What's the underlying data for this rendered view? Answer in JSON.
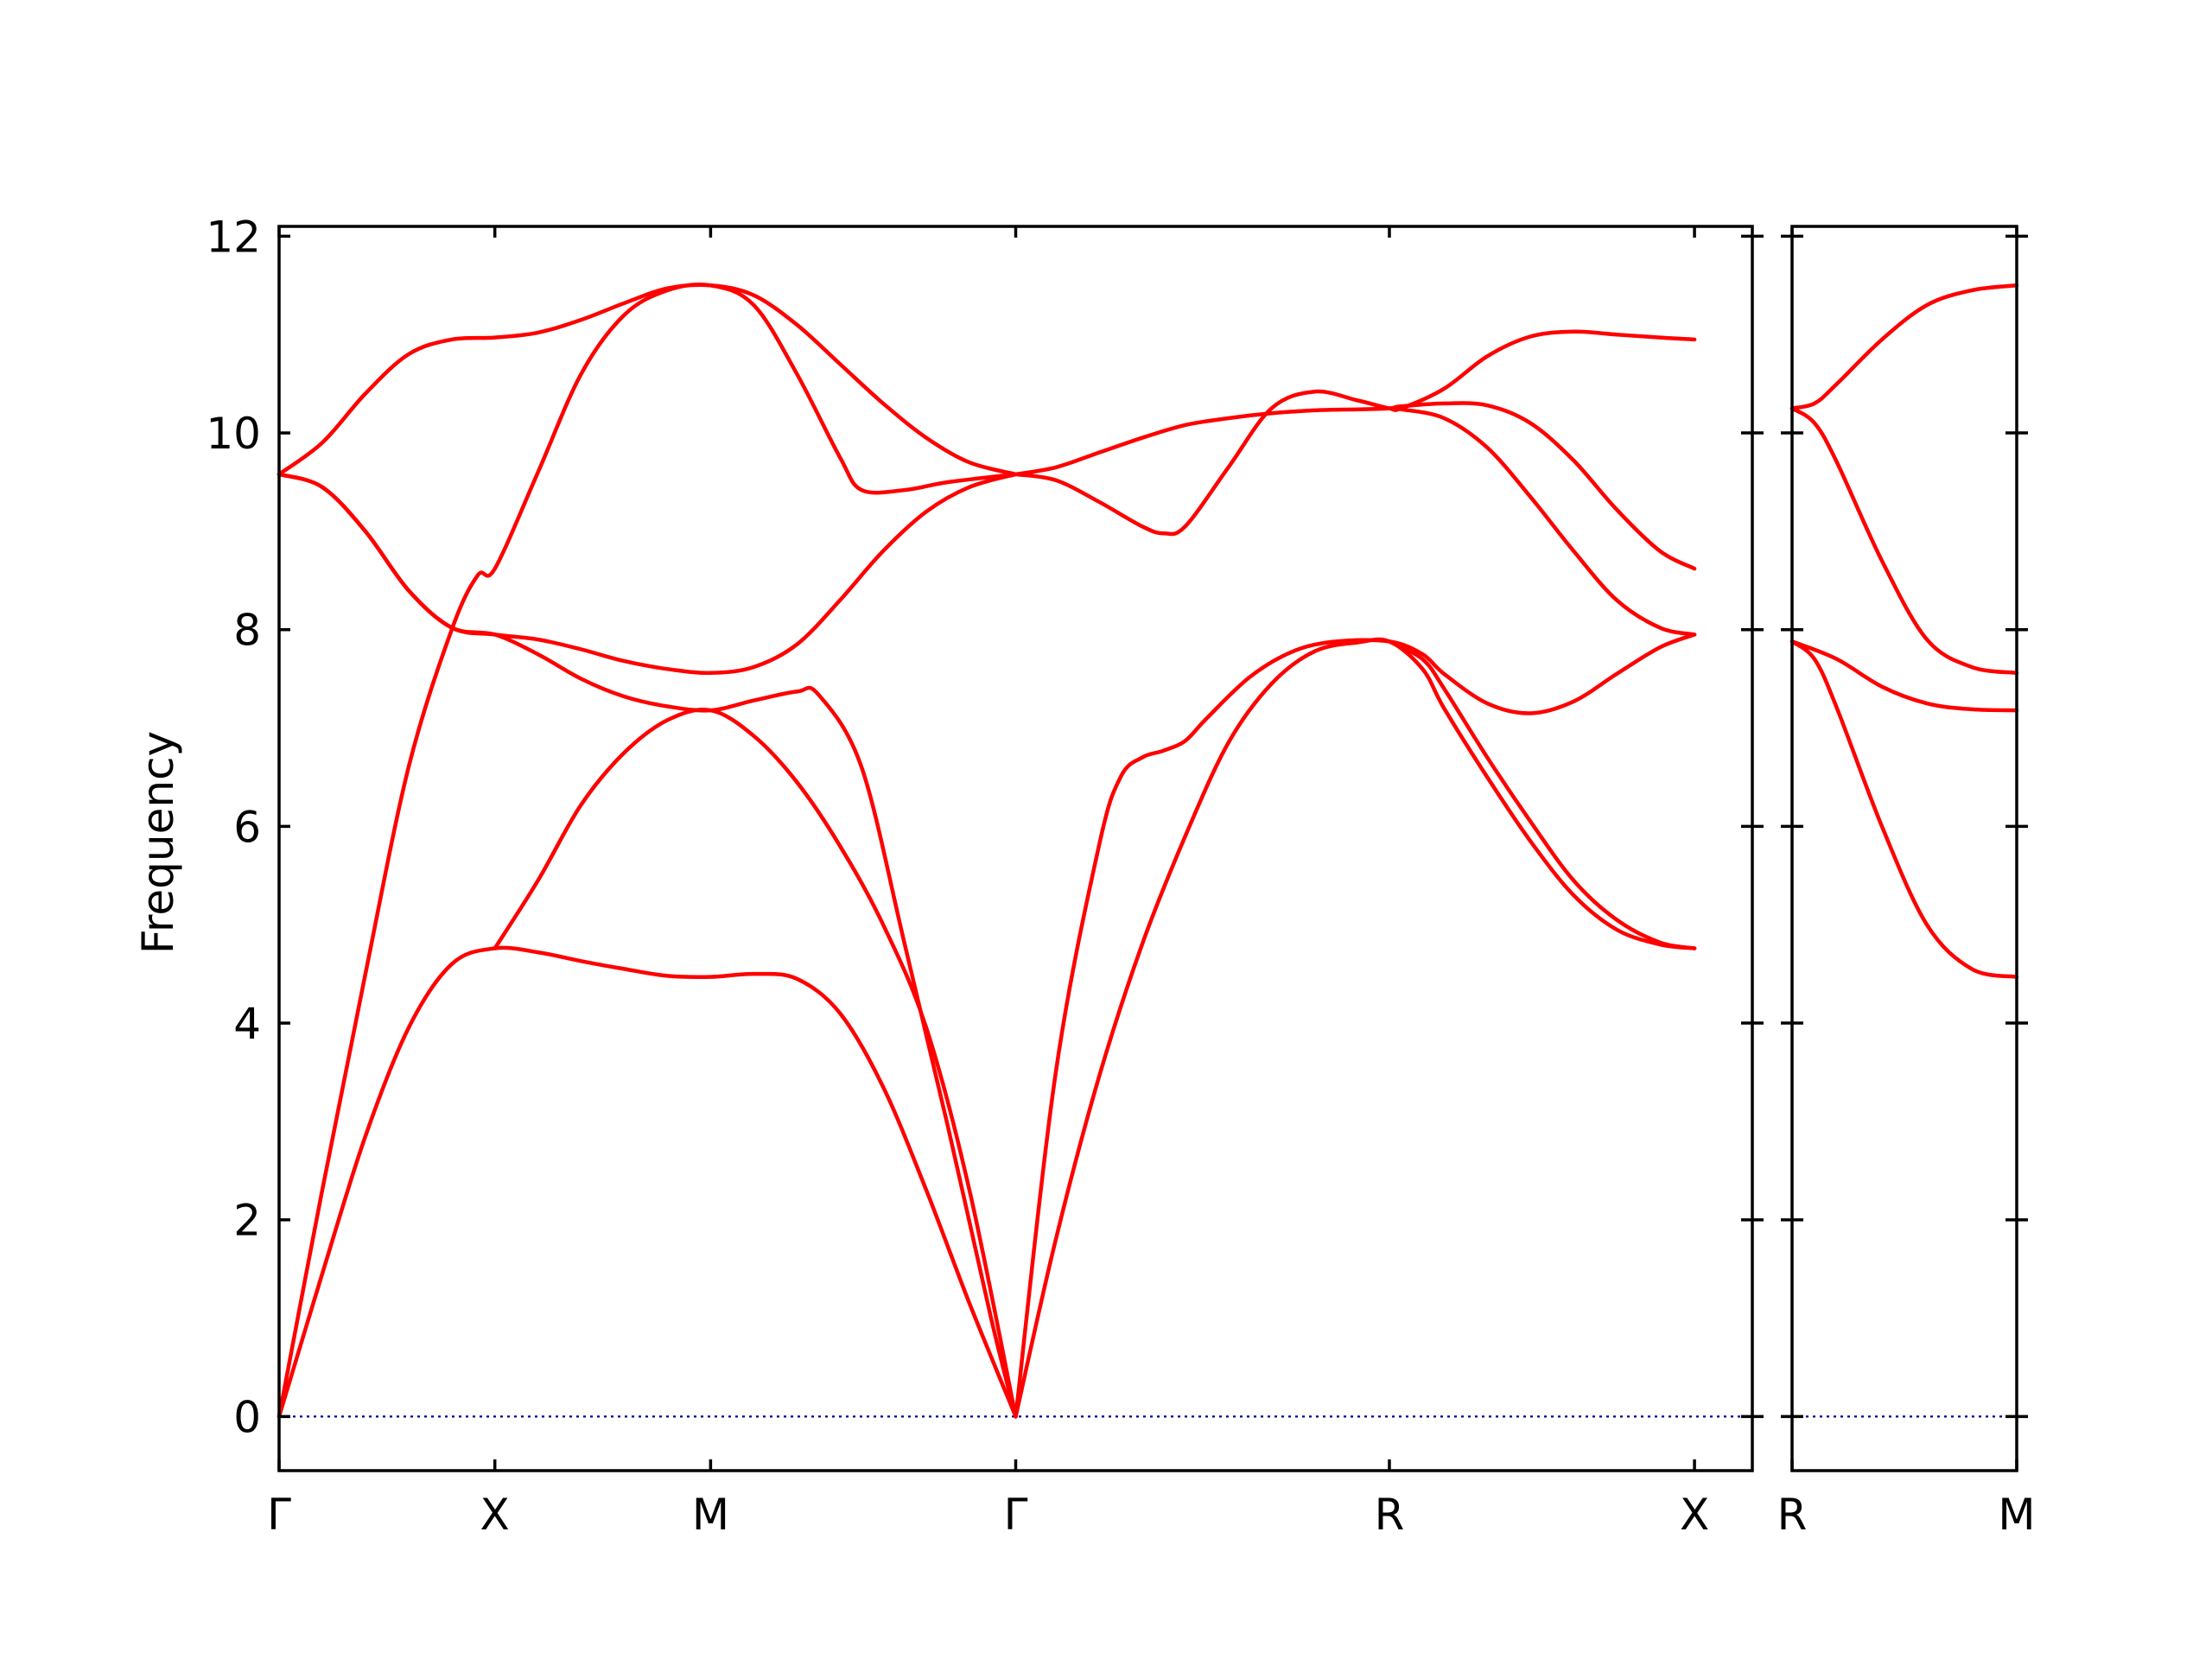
{
  "chart_data": {
    "type": "line",
    "title": "",
    "ylabel": "Frequency",
    "ylim": [
      -0.55,
      12.1
    ],
    "yticks": [
      0,
      2,
      4,
      6,
      8,
      10,
      12
    ],
    "grid": false,
    "colors": {
      "bands": "#ff0000",
      "zero_line": "#00008b"
    },
    "panels": [
      {
        "xlim": [
          0,
          3.4142
        ],
        "xticks": [
          {
            "pos": 0,
            "label": "Γ"
          },
          {
            "pos": 0.5,
            "label": "X"
          },
          {
            "pos": 1.0,
            "label": "M"
          },
          {
            "pos": 1.7071,
            "label": "Γ"
          },
          {
            "pos": 2.5731,
            "label": "R"
          },
          {
            "pos": 3.2802,
            "label": "X"
          }
        ],
        "series": [
          {
            "values": [
              [
                0,
                0
              ],
              [
                0.1,
                2.3
              ],
              [
                0.2,
                4.5
              ],
              [
                0.3,
                6.6
              ],
              [
                0.4,
                8.0
              ],
              [
                0.46,
                8.55
              ],
              [
                0.5,
                8.62
              ],
              [
                0.6,
                9.6
              ],
              [
                0.7,
                10.6
              ],
              [
                0.8,
                11.2
              ],
              [
                0.9,
                11.45
              ],
              [
                1.0,
                11.5
              ],
              [
                1.1,
                11.3
              ],
              [
                1.2,
                10.6
              ],
              [
                1.3,
                9.75
              ],
              [
                1.35,
                9.42
              ],
              [
                1.45,
                9.42
              ],
              [
                1.55,
                9.5
              ],
              [
                1.7071,
                9.58
              ]
            ]
          },
          {
            "values": [
              [
                0,
                9.58
              ],
              [
                0.1,
                9.9
              ],
              [
                0.2,
                10.4
              ],
              [
                0.3,
                10.8
              ],
              [
                0.4,
                10.95
              ],
              [
                0.5,
                10.97
              ],
              [
                0.6,
                11.02
              ],
              [
                0.7,
                11.15
              ],
              [
                0.8,
                11.32
              ],
              [
                0.9,
                11.47
              ],
              [
                1.0,
                11.5
              ],
              [
                1.1,
                11.4
              ],
              [
                1.2,
                11.1
              ],
              [
                1.3,
                10.7
              ],
              [
                1.4,
                10.3
              ],
              [
                1.5,
                9.95
              ],
              [
                1.6,
                9.7
              ],
              [
                1.7071,
                9.58
              ]
            ]
          },
          {
            "values": [
              [
                0,
                9.58
              ],
              [
                0.1,
                9.45
              ],
              [
                0.2,
                9.0
              ],
              [
                0.3,
                8.4
              ],
              [
                0.4,
                8.02
              ],
              [
                0.5,
                7.95
              ],
              [
                0.6,
                7.9
              ],
              [
                0.7,
                7.8
              ],
              [
                0.8,
                7.68
              ],
              [
                0.9,
                7.6
              ],
              [
                1.0,
                7.56
              ],
              [
                1.1,
                7.62
              ],
              [
                1.2,
                7.85
              ],
              [
                1.3,
                8.3
              ],
              [
                1.4,
                8.8
              ],
              [
                1.5,
                9.2
              ],
              [
                1.6,
                9.45
              ],
              [
                1.7071,
                9.58
              ]
            ]
          },
          {
            "values": [
              [
                0,
                0
              ],
              [
                0.1,
                1.45
              ],
              [
                0.2,
                2.85
              ],
              [
                0.3,
                3.95
              ],
              [
                0.4,
                4.6
              ],
              [
                0.5,
                4.76
              ],
              [
                0.6,
                4.72
              ],
              [
                0.7,
                4.63
              ],
              [
                0.8,
                4.55
              ],
              [
                0.9,
                4.48
              ],
              [
                1.0,
                4.47
              ],
              [
                1.1,
                4.5
              ],
              [
                1.2,
                4.45
              ],
              [
                1.3,
                4.1
              ],
              [
                1.4,
                3.35
              ],
              [
                1.5,
                2.3
              ],
              [
                1.6,
                1.15
              ],
              [
                1.7071,
                0
              ]
            ]
          },
          {
            "values": [
              [
                0,
                9.58
              ],
              [
                0.1,
                9.45
              ],
              [
                0.2,
                9.0
              ],
              [
                0.3,
                8.4
              ],
              [
                0.4,
                8.02
              ],
              [
                0.5,
                7.95
              ],
              [
                0.6,
                7.75
              ],
              [
                0.7,
                7.5
              ],
              [
                0.8,
                7.32
              ],
              [
                0.9,
                7.22
              ],
              [
                1.0,
                7.18
              ],
              [
                1.1,
                7.28
              ],
              [
                1.2,
                7.37
              ],
              [
                1.25,
                7.34
              ],
              [
                1.35,
                6.6
              ],
              [
                1.45,
                4.8
              ],
              [
                1.55,
                2.95
              ],
              [
                1.65,
                1.0
              ],
              [
                1.7071,
                0
              ]
            ]
          },
          {
            "values": [
              [
                0.5,
                4.76
              ],
              [
                0.6,
                5.45
              ],
              [
                0.7,
                6.22
              ],
              [
                0.8,
                6.75
              ],
              [
                0.9,
                7.08
              ],
              [
                1.0,
                7.18
              ],
              [
                1.1,
                6.92
              ],
              [
                1.2,
                6.45
              ],
              [
                1.3,
                5.8
              ],
              [
                1.4,
                5.0
              ],
              [
                1.5,
                3.95
              ],
              [
                1.6,
                2.3
              ],
              [
                1.7071,
                0
              ]
            ]
          },
          {
            "values": [
              [
                1.7071,
                9.58
              ],
              [
                1.8,
                9.52
              ],
              [
                1.9,
                9.3
              ],
              [
                2.0,
                9.05
              ],
              [
                2.05,
                8.98
              ],
              [
                2.1,
                9.05
              ],
              [
                2.2,
                9.65
              ],
              [
                2.3,
                10.25
              ],
              [
                2.4,
                10.42
              ],
              [
                2.5,
                10.33
              ],
              [
                2.5731,
                10.25
              ],
              [
                2.6,
                10.25
              ],
              [
                2.7,
                10.45
              ],
              [
                2.8,
                10.78
              ],
              [
                2.9,
                10.98
              ],
              [
                3.0,
                11.03
              ],
              [
                3.1,
                11.0
              ],
              [
                3.2,
                10.97
              ],
              [
                3.2802,
                10.95
              ]
            ]
          },
          {
            "values": [
              [
                1.7071,
                9.58
              ],
              [
                1.8,
                9.65
              ],
              [
                1.9,
                9.8
              ],
              [
                2.0,
                9.95
              ],
              [
                2.1,
                10.08
              ],
              [
                2.2,
                10.15
              ],
              [
                2.3,
                10.2
              ],
              [
                2.4,
                10.23
              ],
              [
                2.5,
                10.24
              ],
              [
                2.5731,
                10.25
              ],
              [
                2.6,
                10.27
              ],
              [
                2.7,
                10.3
              ],
              [
                2.8,
                10.28
              ],
              [
                2.9,
                10.1
              ],
              [
                3.0,
                9.72
              ],
              [
                3.1,
                9.22
              ],
              [
                3.2,
                8.8
              ],
              [
                3.2802,
                8.62
              ]
            ]
          },
          {
            "values": [
              [
                2.5731,
                10.25
              ],
              [
                2.6,
                10.24
              ],
              [
                2.7,
                10.15
              ],
              [
                2.8,
                9.85
              ],
              [
                2.9,
                9.35
              ],
              [
                3.0,
                8.8
              ],
              [
                3.1,
                8.3
              ],
              [
                3.2,
                8.02
              ],
              [
                3.2802,
                7.95
              ]
            ]
          },
          {
            "values": [
              [
                1.7071,
                0
              ],
              [
                1.8,
                3.5
              ],
              [
                1.9,
                5.8
              ],
              [
                1.95,
                6.5
              ],
              [
                2.0,
                6.7
              ],
              [
                2.05,
                6.77
              ],
              [
                2.1,
                6.87
              ],
              [
                2.15,
                7.1
              ],
              [
                2.25,
                7.52
              ],
              [
                2.35,
                7.78
              ],
              [
                2.45,
                7.88
              ],
              [
                2.5731,
                7.88
              ],
              [
                2.65,
                7.75
              ],
              [
                2.7,
                7.55
              ],
              [
                2.8,
                7.25
              ],
              [
                2.9,
                7.15
              ],
              [
                3.0,
                7.27
              ],
              [
                3.1,
                7.55
              ],
              [
                3.2,
                7.82
              ],
              [
                3.2802,
                7.95
              ]
            ]
          },
          {
            "values": [
              [
                1.7071,
                0
              ],
              [
                1.8,
                1.8
              ],
              [
                1.9,
                3.45
              ],
              [
                2.0,
                4.8
              ],
              [
                2.1,
                5.9
              ],
              [
                2.2,
                6.85
              ],
              [
                2.3,
                7.45
              ],
              [
                2.4,
                7.78
              ],
              [
                2.5,
                7.87
              ],
              [
                2.5731,
                7.88
              ],
              [
                2.65,
                7.6
              ],
              [
                2.7,
                7.2
              ],
              [
                2.8,
                6.5
              ],
              [
                2.9,
                5.85
              ],
              [
                3.0,
                5.3
              ],
              [
                3.1,
                4.95
              ],
              [
                3.2,
                4.8
              ],
              [
                3.2802,
                4.76
              ]
            ]
          },
          {
            "values": [
              [
                2.5731,
                7.88
              ],
              [
                2.65,
                7.7
              ],
              [
                2.7,
                7.4
              ],
              [
                2.8,
                6.7
              ],
              [
                2.9,
                6.05
              ],
              [
                3.0,
                5.45
              ],
              [
                3.1,
                5.05
              ],
              [
                3.2,
                4.82
              ],
              [
                3.2802,
                4.76
              ]
            ]
          }
        ]
      },
      {
        "xlim": [
          0,
          0.5
        ],
        "xticks": [
          {
            "pos": 0,
            "label": "R"
          },
          {
            "pos": 0.5,
            "label": "M"
          }
        ],
        "series": [
          {
            "values": [
              [
                0,
                10.25
              ],
              [
                0.05,
                10.3
              ],
              [
                0.1,
                10.5
              ],
              [
                0.2,
                10.95
              ],
              [
                0.3,
                11.3
              ],
              [
                0.4,
                11.45
              ],
              [
                0.5,
                11.5
              ]
            ]
          },
          {
            "values": [
              [
                0,
                10.25
              ],
              [
                0.05,
                10.1
              ],
              [
                0.1,
                9.7
              ],
              [
                0.2,
                8.7
              ],
              [
                0.3,
                7.9
              ],
              [
                0.4,
                7.62
              ],
              [
                0.5,
                7.56
              ]
            ]
          },
          {
            "values": [
              [
                0,
                7.88
              ],
              [
                0.1,
                7.7
              ],
              [
                0.2,
                7.42
              ],
              [
                0.3,
                7.25
              ],
              [
                0.4,
                7.19
              ],
              [
                0.5,
                7.18
              ]
            ]
          },
          {
            "values": [
              [
                0,
                7.88
              ],
              [
                0.05,
                7.7
              ],
              [
                0.1,
                7.2
              ],
              [
                0.2,
                6.0
              ],
              [
                0.3,
                5.0
              ],
              [
                0.4,
                4.55
              ],
              [
                0.5,
                4.47
              ]
            ]
          }
        ]
      }
    ]
  }
}
